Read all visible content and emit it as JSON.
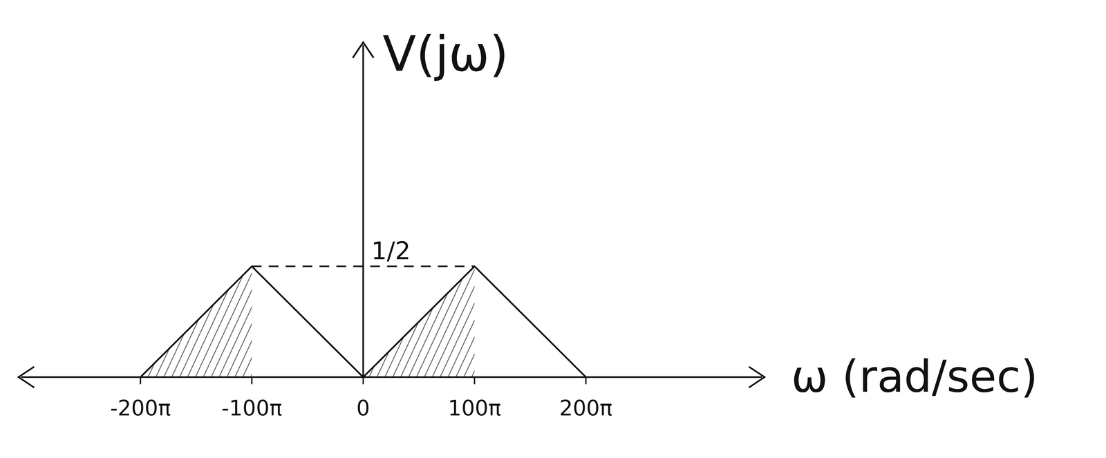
{
  "chart_data": {
    "type": "line",
    "x_label": "ω (rad/sec)",
    "y_label": "V(jω)",
    "x": [
      -628.32,
      -314.16,
      0,
      0,
      314.16,
      628.32
    ],
    "series": [
      {
        "type": "area",
        "color": "#555555",
        "values": [
          0,
          0.5,
          null,
          0,
          0.5,
          null
        ]
      },
      {
        "type": "line",
        "color": "#111111",
        "line_style": "solid",
        "values": [
          0,
          0.5,
          0,
          0,
          0.5,
          0
        ]
      },
      {
        "type": "line",
        "color": "#111111",
        "line_style": "dashed",
        "values": [
          null,
          0.5,
          null,
          null,
          0.5,
          null
        ]
      }
    ],
    "annotations": [
      {
        "text": "1/2",
        "x": 0,
        "y": 0.5
      }
    ],
    "xlim": [
      -965,
      1125
    ],
    "xticks": [
      {
        "value": -628.32,
        "label": "-200π"
      },
      {
        "value": -314.16,
        "label": "-100π"
      },
      0,
      {
        "value": 314.16,
        "label": "100π"
      },
      {
        "value": 628.32,
        "label": "200π"
      }
    ],
    "ylim": [
      0,
      1.5
    ],
    "tick_labels": "x",
    "grid": false
  }
}
